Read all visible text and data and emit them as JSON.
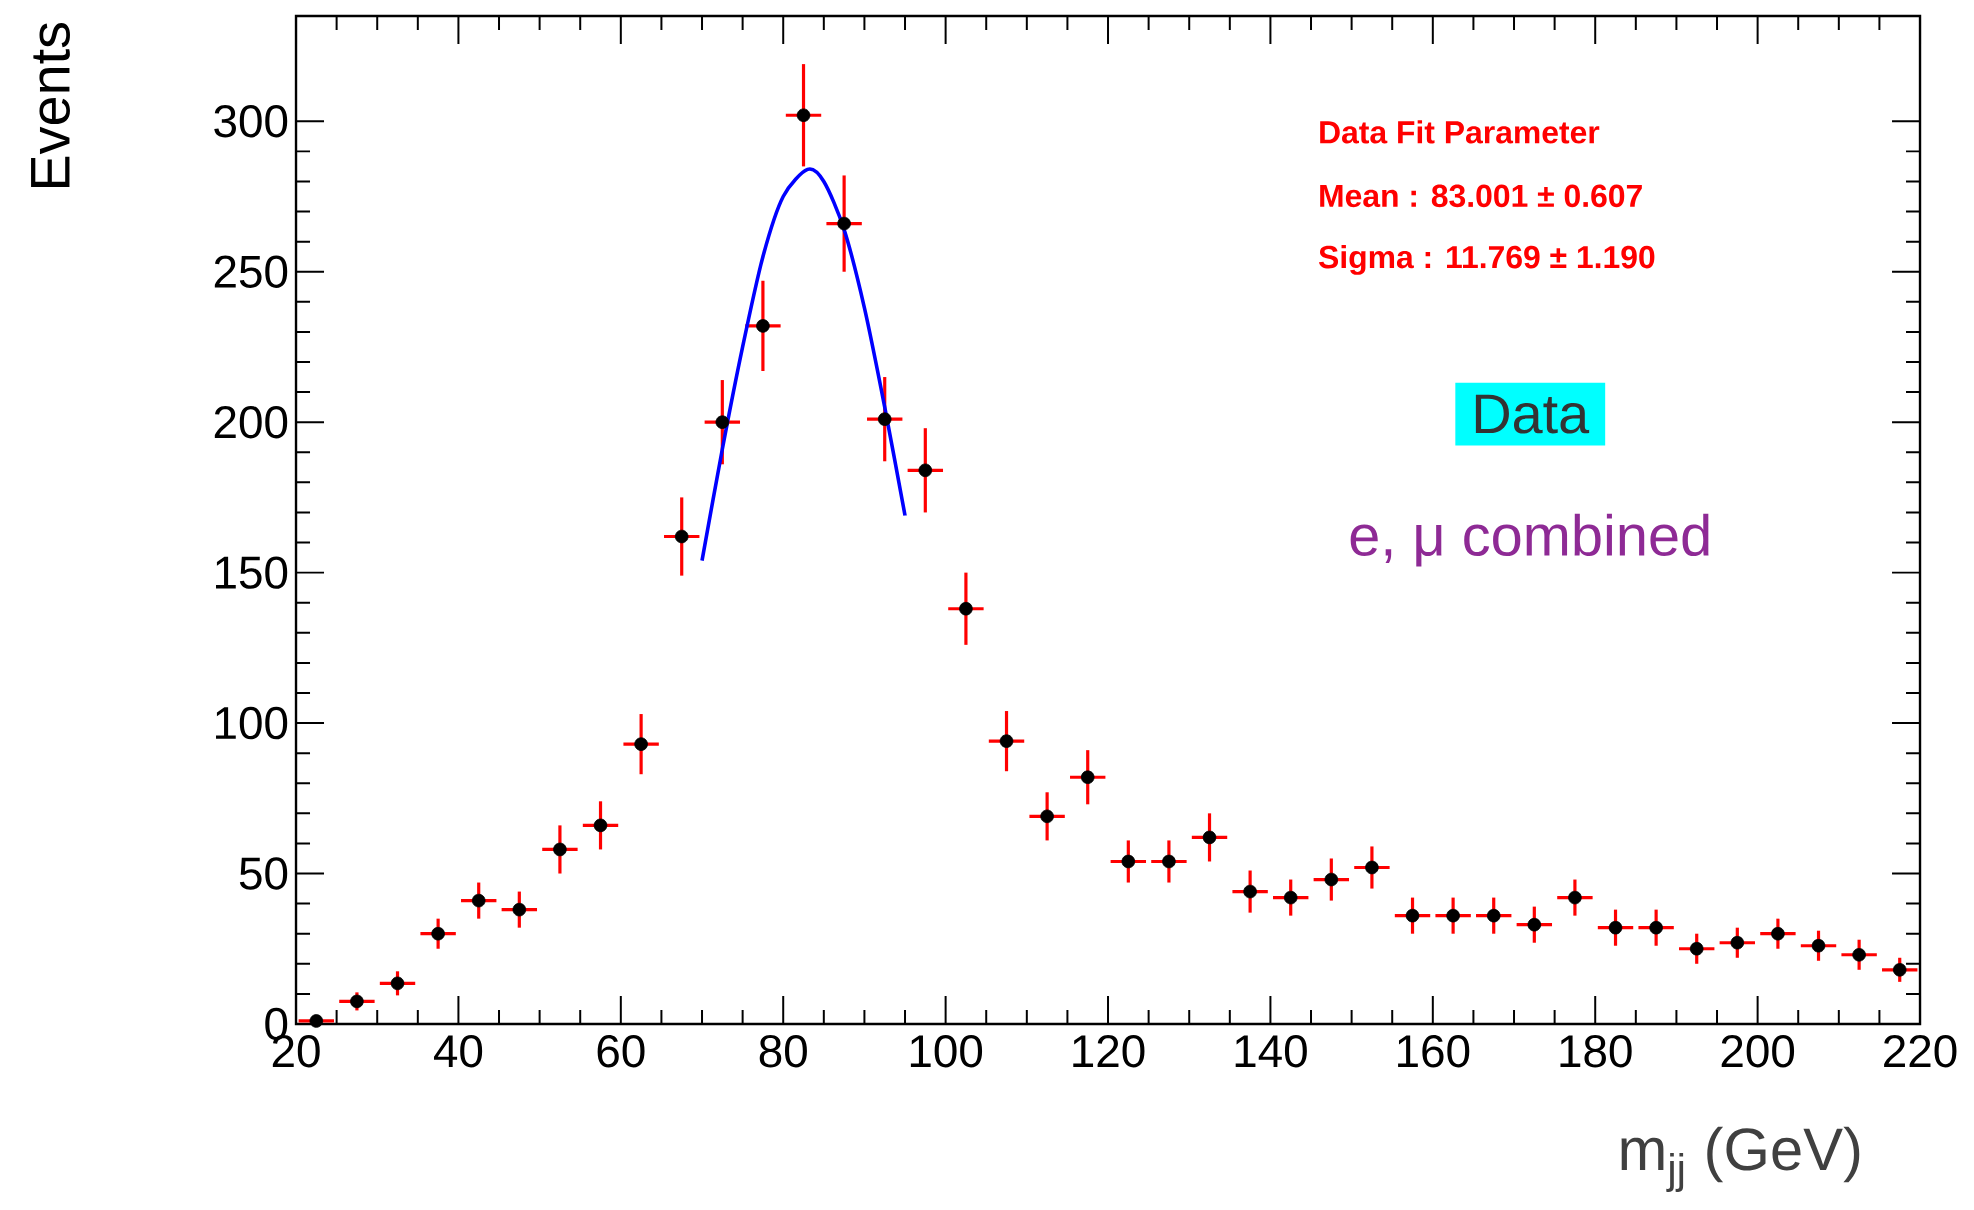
{
  "chart_data": {
    "type": "scatter",
    "xlabel": "m$_{jj}$ (GeV)",
    "ylabel": "Events",
    "xlim": [
      20,
      220
    ],
    "ylim": [
      0,
      335
    ],
    "xticks": [
      20,
      40,
      60,
      80,
      100,
      120,
      140,
      160,
      180,
      200,
      220
    ],
    "yticks": [
      0,
      50,
      100,
      150,
      200,
      250,
      300
    ],
    "grid": false,
    "series": [
      {
        "color": "#000000",
        "x": [
          22.5,
          27.5,
          32.5,
          37.5,
          42.5,
          47.5,
          52.5,
          57.5,
          62.5,
          67.5,
          72.5,
          77.5,
          82.5,
          87.5,
          92.5,
          97.5,
          102.5,
          107.5,
          112.5,
          117.5,
          122.5,
          127.5,
          132.5,
          137.5,
          142.5,
          147.5,
          152.5,
          157.5,
          162.5,
          167.5,
          172.5,
          177.5,
          182.5,
          187.5,
          192.5,
          197.5,
          202.5,
          207.5,
          212.5,
          217.5
        ],
        "values": [
          1,
          7.5,
          13.5,
          30,
          41,
          38,
          58,
          66,
          93,
          162,
          200,
          232,
          302,
          266,
          201,
          184,
          138,
          94,
          69,
          82,
          54,
          54,
          62,
          44,
          42,
          48,
          52,
          36,
          36,
          36,
          33,
          42,
          32,
          32,
          25,
          27,
          30,
          26,
          23,
          18
        ],
        "errors": [
          1,
          3,
          4,
          5,
          6,
          6,
          8,
          8,
          10,
          13,
          14,
          15,
          17,
          16,
          14,
          14,
          12,
          10,
          8,
          9,
          7,
          7,
          8,
          7,
          6,
          7,
          7,
          6,
          6,
          6,
          6,
          6,
          6,
          6,
          5,
          5,
          5,
          5,
          5,
          4
        ],
        "xerrors": [
          2.5,
          2.5,
          2.5,
          2.5,
          2.5,
          2.5,
          2.5,
          2.5,
          2.5,
          2.5,
          2.5,
          2.5,
          2.5,
          2.5,
          2.5,
          2.5,
          2.5,
          2.5,
          2.5,
          2.5,
          2.5,
          2.5,
          2.5,
          2.5,
          2.5,
          2.5,
          2.5,
          2.5,
          2.5,
          2.5,
          2.5,
          2.5,
          2.5,
          2.5,
          2.5,
          2.5,
          2.5,
          2.5,
          2.5,
          2.5
        ]
      },
      {
        "type": "line",
        "color": "#0000ff",
        "line_style": "solid",
        "x": [
          70,
          72.5,
          75,
          77.5,
          80,
          83,
          85,
          87.5,
          90,
          92.5,
          95
        ],
        "values": [
          154,
          191,
          225,
          255,
          275,
          284,
          280,
          264,
          238,
          205,
          169
        ]
      }
    ],
    "annotations": [
      "Data Fit Parameter",
      "Mean : 83.001 ± 0.607",
      "Sigma : 11.769 ± 1.190",
      "Data",
      "e, μ combined"
    ]
  }
}
